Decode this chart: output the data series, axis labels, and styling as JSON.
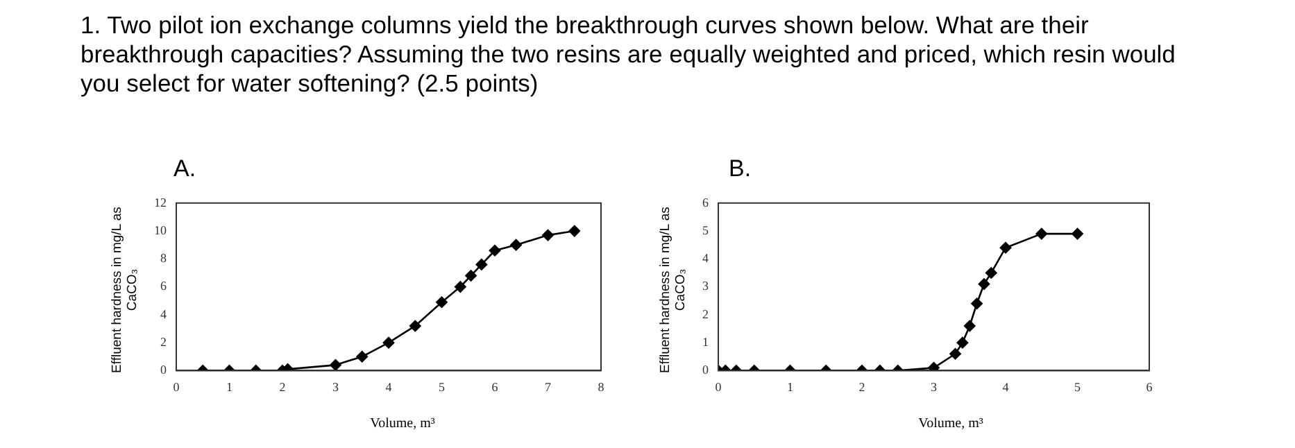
{
  "chart_data": [
    {
      "type": "line",
      "title": "A.",
      "annotations": [
        "1. Two pilot ion exchange columns yield the breakthrough curves shown below. What are their breakthrough capacities? Assuming the two resins are equally weighted and priced, which resin would you select for water softening? (2.5 points)"
      ],
      "xlabel": "Volume, m³",
      "ylabel": "Effluent hardness in mg/L as CaCO₃",
      "series": [
        {
          "color": "#000000",
          "x": [
            0.5,
            1,
            1.5,
            2,
            2.1,
            3,
            3.5,
            4,
            4.5,
            5,
            5.35,
            5.55,
            5.75,
            6,
            6.4,
            7,
            7.5
          ],
          "values": [
            0,
            0,
            0,
            0,
            0.1,
            0.4,
            1,
            2,
            3.2,
            4.9,
            6,
            6.8,
            7.6,
            8.6,
            9,
            9.7,
            10
          ]
        }
      ],
      "xlim": [
        0,
        8
      ],
      "xticks": [
        0,
        1,
        2,
        3,
        4,
        5,
        6,
        7,
        8
      ],
      "ylim": [
        0,
        12
      ],
      "yticks": [
        0,
        2,
        4,
        6,
        8,
        10,
        12
      ],
      "grid": false,
      "legend": false,
      "marker": "diamond",
      "line_style": "solid"
    },
    {
      "type": "line",
      "title": "B.",
      "xlabel": "Volume, m³",
      "ylabel": "Effluent hardness in mg/L as CaCO₃",
      "series": [
        {
          "color": "#000000",
          "x": [
            0,
            0.1,
            0.25,
            0.5,
            1,
            1.5,
            2,
            2.25,
            2.5,
            3,
            3.3,
            3.4,
            3.5,
            3.6,
            3.7,
            3.8,
            4,
            4.5,
            5
          ],
          "values": [
            0,
            0,
            0,
            0,
            0,
            0,
            0,
            0,
            0,
            0.1,
            0.6,
            1,
            1.6,
            2.4,
            3.1,
            3.5,
            4.4,
            4.9,
            4.9
          ]
        }
      ],
      "xlim": [
        0,
        6
      ],
      "xticks": [
        0,
        1,
        2,
        3,
        4,
        5,
        6
      ],
      "ylim": [
        0,
        6
      ],
      "yticks": [
        0,
        1,
        2,
        3,
        4,
        5,
        6
      ],
      "grid": false,
      "legend": false,
      "marker": "diamond",
      "line_style": "solid"
    }
  ]
}
